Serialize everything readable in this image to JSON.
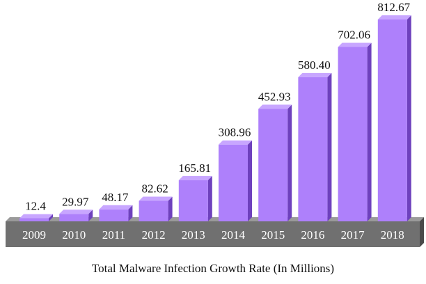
{
  "chart_data": {
    "type": "bar",
    "title": "Total Malware Infection Growth Rate (In Millions)",
    "categories": [
      "2009",
      "2010",
      "2011",
      "2012",
      "2013",
      "2014",
      "2015",
      "2016",
      "2017",
      "2018"
    ],
    "values": [
      12.4,
      29.97,
      48.17,
      82.62,
      165.81,
      308.96,
      452.93,
      580.4,
      702.06,
      812.67
    ],
    "value_labels": [
      "12.4",
      "29.97",
      "48.17",
      "82.62",
      "165.81",
      "308.96",
      "452.93",
      "580.40",
      "702.06",
      "812.67"
    ],
    "xlabel": "",
    "ylabel": "",
    "ylim": [
      0,
      812.67
    ],
    "grid": false,
    "legend": "none",
    "colors": {
      "bar_front": "#ae80fb",
      "bar_side": "#6e41bd",
      "bar_top": "#c8a6ff",
      "base_front": "#707070",
      "base_top": "#9a9a9a",
      "tick_text": "#ffffff"
    }
  }
}
